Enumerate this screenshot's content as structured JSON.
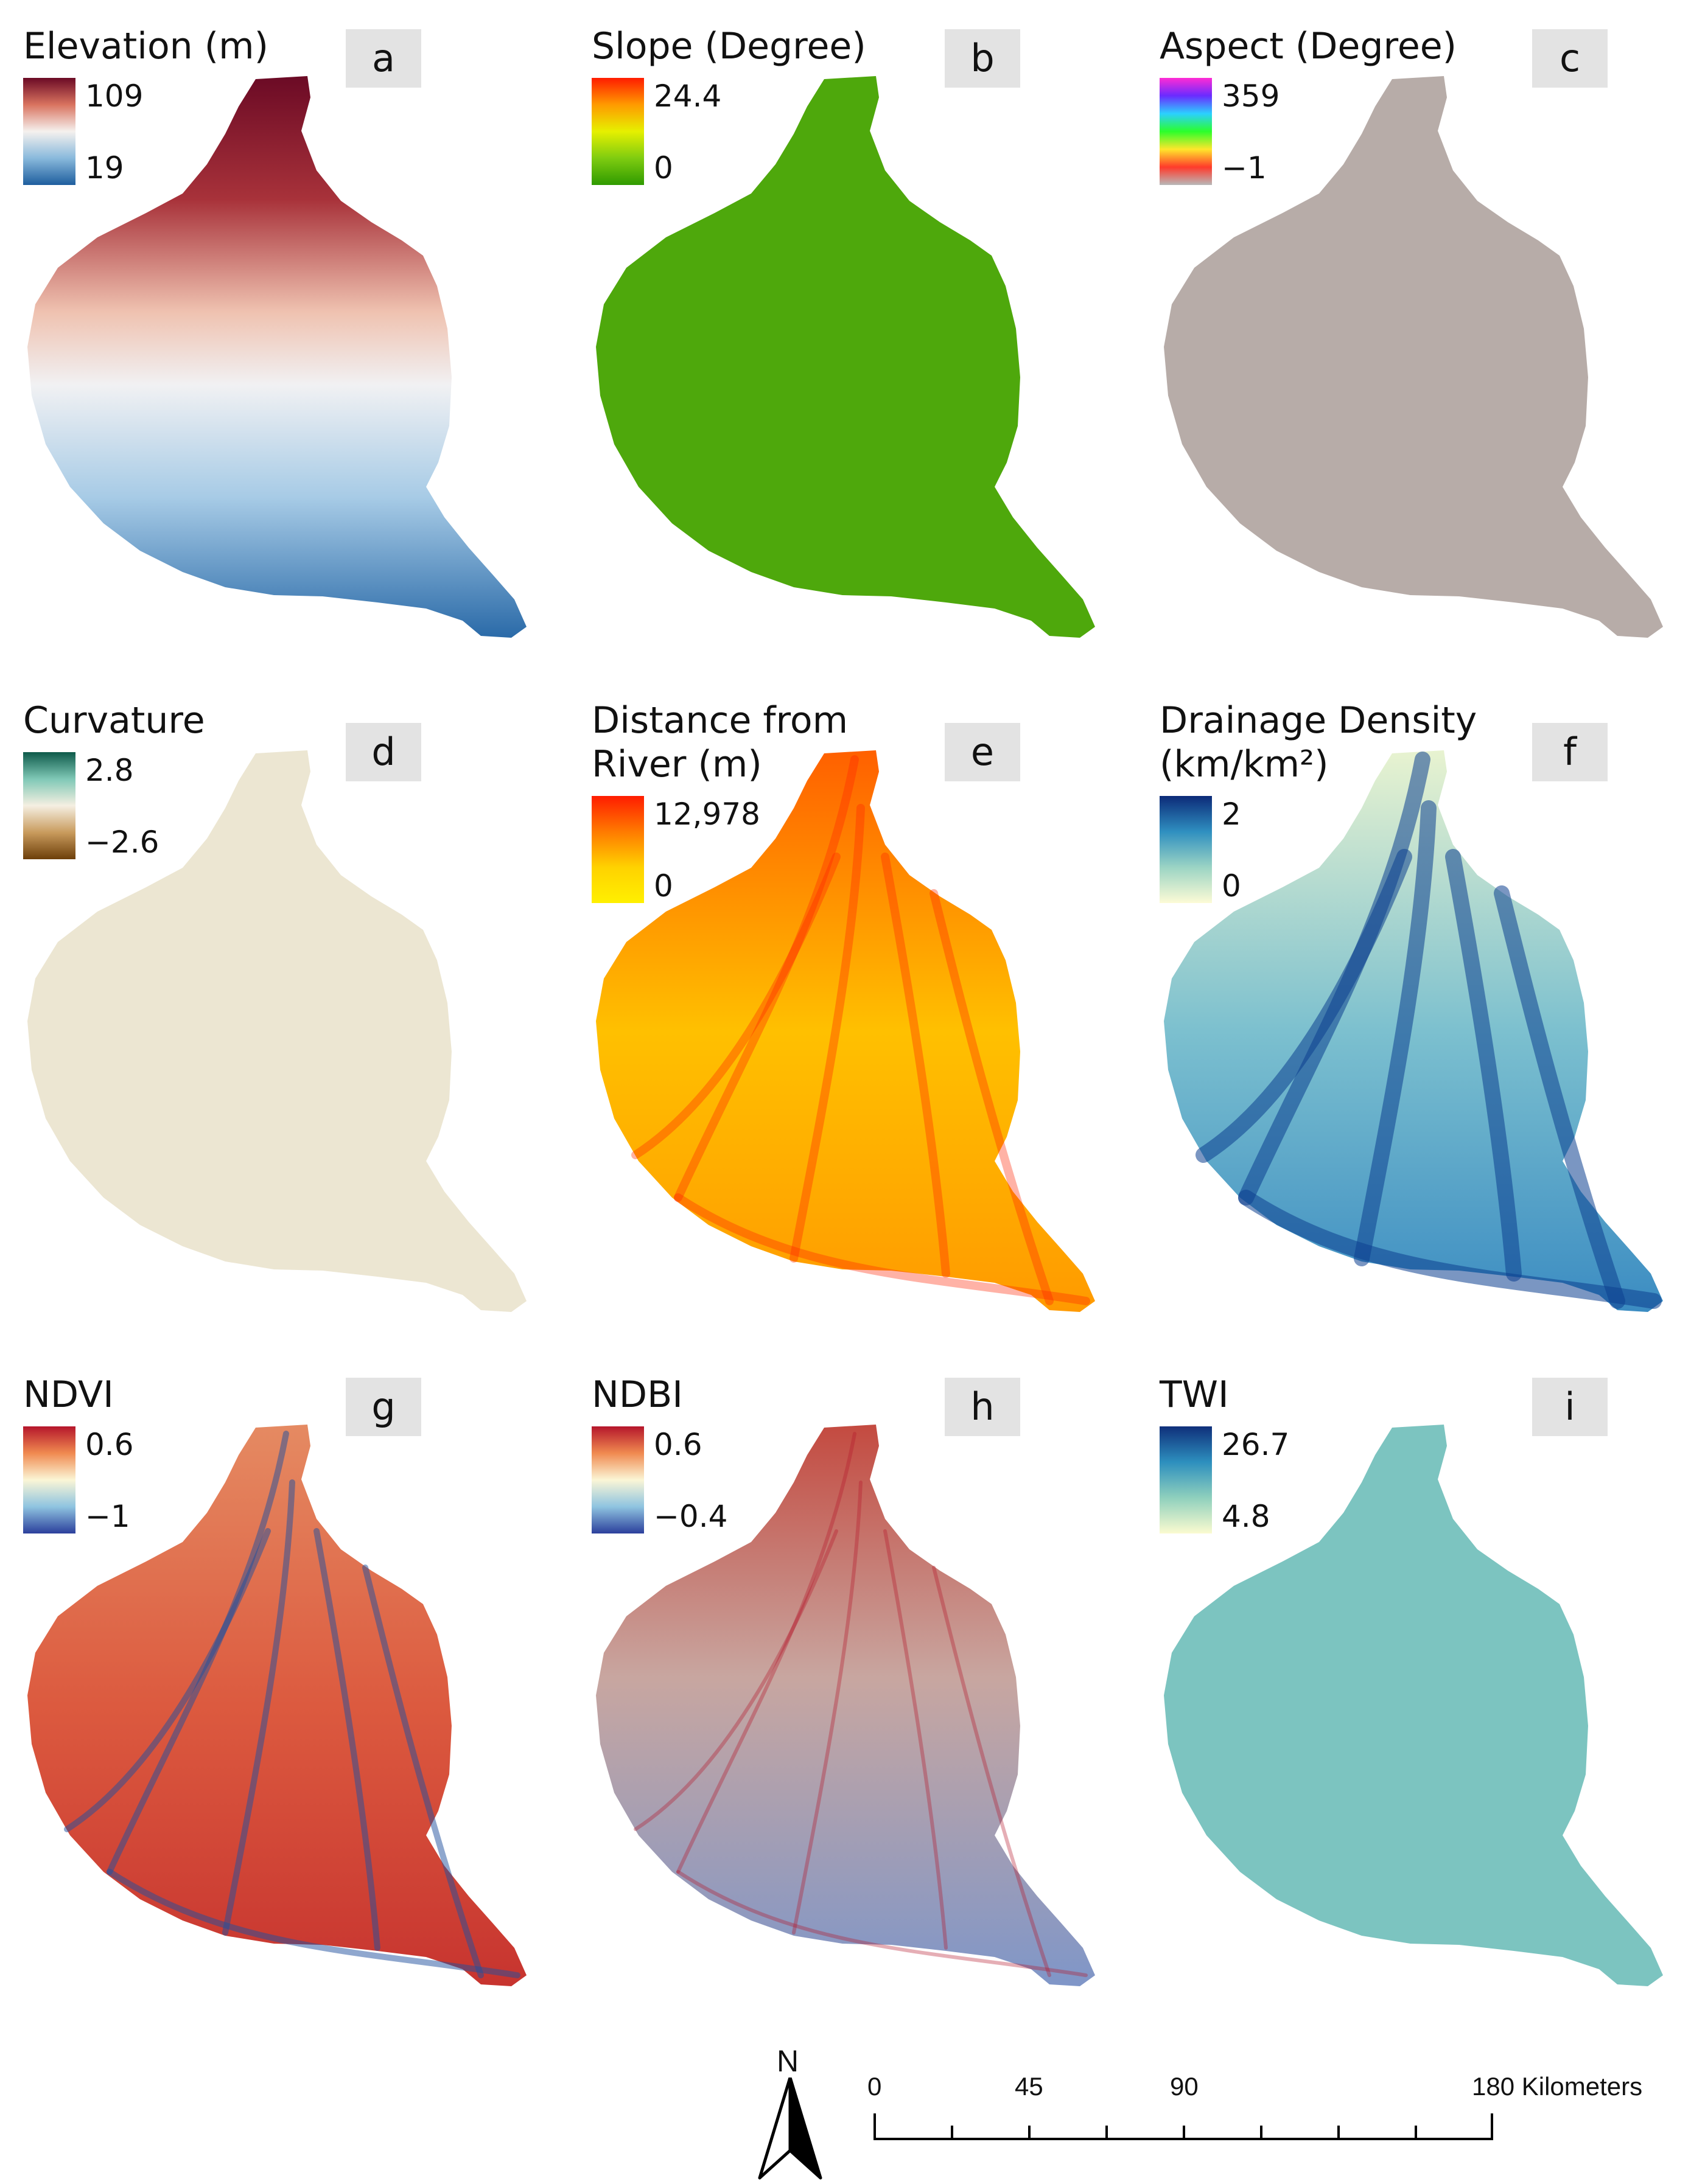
{
  "panels": [
    {
      "id": "a",
      "title": "Elevation (m)",
      "max": "109",
      "min": "19",
      "colors": [
        "#6b0a25",
        "#d9735f",
        "#f5f1ee",
        "#89b9dc",
        "#1e5e9e"
      ],
      "fill": "#c7dcee"
    },
    {
      "id": "b",
      "title": "Slope (Degree)",
      "max": "24.4",
      "min": "0",
      "colors": [
        "#ff1c00",
        "#ff9a00",
        "#e6f000",
        "#7fcc10",
        "#2f9a00"
      ],
      "fill": "#4ea80c"
    },
    {
      "id": "c",
      "title": "Aspect (Degree)",
      "max": "359",
      "min": "−1",
      "colors": [
        "#ff2bd4",
        "#6a2bff",
        "#2bd0ff",
        "#2bff2b",
        "#ffe62b",
        "#ff3a2b",
        "#b8b8b8"
      ],
      "fill": "#b7aca8"
    },
    {
      "id": "d",
      "title": "Curvature",
      "max": "2.8",
      "min": "−2.6",
      "colors": [
        "#0e5a4a",
        "#7fc8b6",
        "#f5efe1",
        "#c99b5d",
        "#6d3f0a"
      ],
      "fill": "#ece6d2"
    },
    {
      "id": "e",
      "title": "Distance from\nRiver (m)",
      "max": "12,978",
      "min": "0",
      "colors": [
        "#ff1c00",
        "#ff7a00",
        "#ffd200",
        "#fff000"
      ],
      "fill": "#ffc400"
    },
    {
      "id": "f",
      "title": "Drainage Density\n(km/km²)",
      "max": "2",
      "min": "0",
      "colors": [
        "#0c2a78",
        "#2f8fc0",
        "#9bd4c4",
        "#fdfbd6"
      ],
      "fill": "#b6e0d0"
    },
    {
      "id": "g",
      "title": "NDVI",
      "max": "0.6",
      "min": "−1",
      "colors": [
        "#b5162b",
        "#f08a50",
        "#fbf6d6",
        "#8fc4e0",
        "#2b3f9c"
      ],
      "fill": "#dc5a3f"
    },
    {
      "id": "h",
      "title": "NDBI",
      "max": "0.6",
      "min": "−0.4",
      "colors": [
        "#b5162b",
        "#f08a50",
        "#fbf6d6",
        "#8fc4e0",
        "#2b3f9c"
      ],
      "fill": "#c8a6a0"
    },
    {
      "id": "i",
      "title": "TWI",
      "max": "26.7",
      "min": "4.8",
      "colors": [
        "#0f2f7a",
        "#2d8fbe",
        "#8fd0bd",
        "#fbfbd0"
      ],
      "fill": "#7cc4c0"
    }
  ],
  "north_arrow": {
    "label": "N"
  },
  "scale_bar": {
    "ticks": [
      "0",
      "45",
      "90"
    ],
    "end_label": "180 Kilometers"
  }
}
